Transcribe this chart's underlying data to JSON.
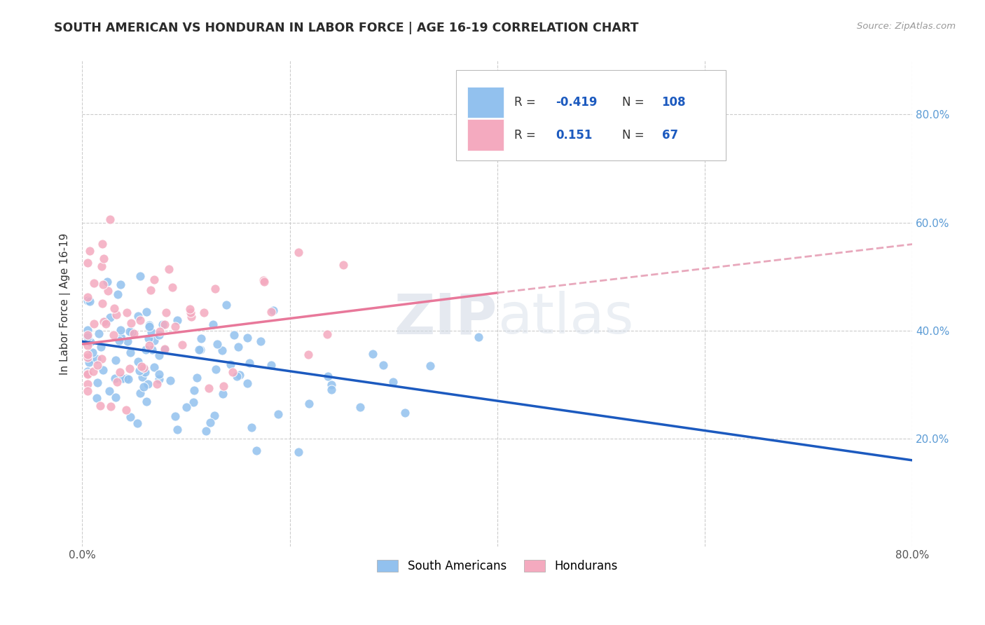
{
  "title": "SOUTH AMERICAN VS HONDURAN IN LABOR FORCE | AGE 16-19 CORRELATION CHART",
  "source": "Source: ZipAtlas.com",
  "ylabel": "In Labor Force | Age 16-19",
  "xlim": [
    0.0,
    0.8
  ],
  "ylim": [
    0.0,
    0.9
  ],
  "xticks": [
    0.0,
    0.2,
    0.4,
    0.6,
    0.8
  ],
  "yticks": [
    0.2,
    0.4,
    0.6,
    0.8
  ],
  "xticklabels": [
    "0.0%",
    "",
    "",
    "",
    "80.0%"
  ],
  "yticklabels_right": [
    "20.0%",
    "40.0%",
    "60.0%",
    "80.0%"
  ],
  "blue_color": "#92C1EE",
  "pink_color": "#F4AABF",
  "blue_line_color": "#1C5ABF",
  "pink_line_color": "#E8789A",
  "pink_dashed_color": "#E8A8BC",
  "background_color": "#FFFFFF",
  "grid_color": "#CCCCCC",
  "legend_R1": "-0.419",
  "legend_N1": "108",
  "legend_R2": "0.151",
  "legend_N2": "67",
  "blue_regression": [
    0.38,
    0.16
  ],
  "pink_regression_solid": [
    0.375,
    0.47
  ],
  "pink_regression_dashed": [
    0.47,
    0.56
  ]
}
